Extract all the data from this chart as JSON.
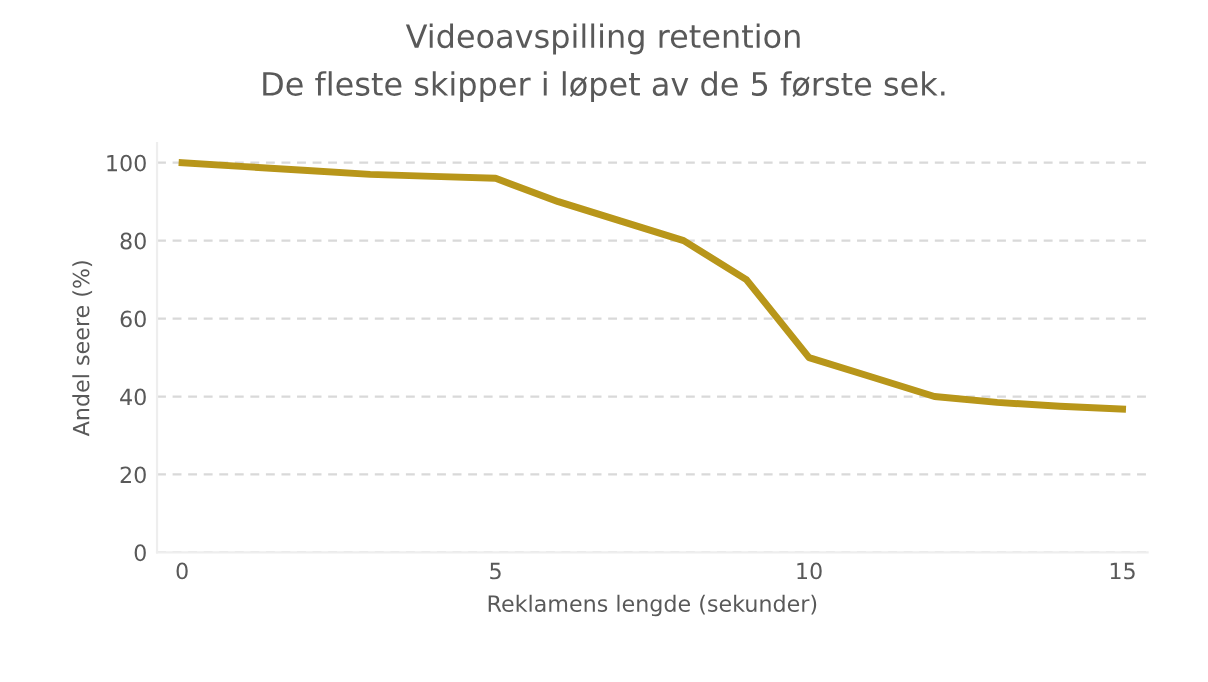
{
  "chart_data": {
    "type": "line",
    "title": "Videoavspilling retention",
    "subtitle": "De fleste skipper i løpet av de 5 første sek.",
    "xlabel": "Reklamens lengde (sekunder)",
    "ylabel": "Andel seere (%)",
    "x": [
      0,
      1,
      2,
      3,
      4,
      5,
      6,
      7,
      8,
      9,
      10,
      11,
      12,
      13,
      14,
      15
    ],
    "series": [
      {
        "color": "#b8961a",
        "values": [
          100,
          99,
          98,
          97,
          96.5,
          96,
          90,
          85,
          80,
          70,
          50,
          45,
          40,
          38.5,
          37.5,
          36.8
        ]
      }
    ],
    "xlim": [
      -0.4,
      15.4
    ],
    "xticks": [
      0,
      5,
      10,
      15
    ],
    "ylim": [
      0,
      105
    ],
    "yticks": [
      0,
      20,
      40,
      60,
      80,
      100
    ],
    "grid": "y",
    "marker": "none",
    "line_style": "solid"
  }
}
